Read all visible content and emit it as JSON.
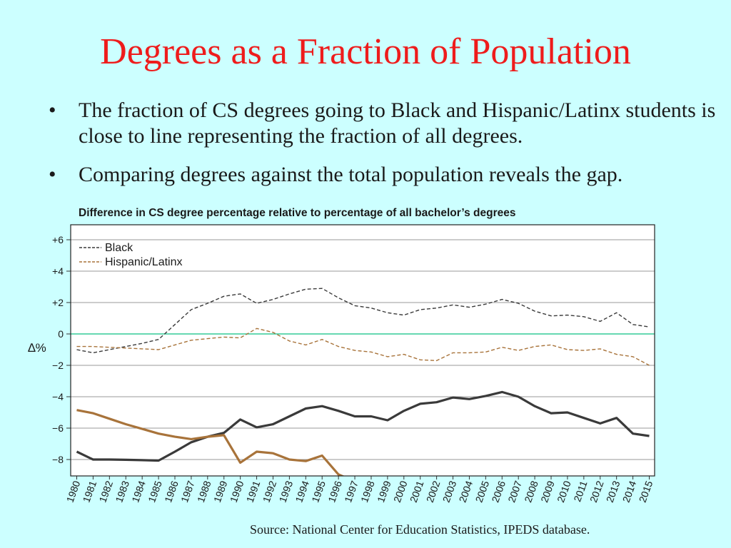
{
  "slide": {
    "title": "Degrees as a Fraction of Population",
    "bullets": [
      "The fraction of CS degrees going to Black and Hispanic/Latinx students is close to line representing the fraction of all degrees.",
      "Comparing degrees against the total population reveals the gap."
    ],
    "source": "Source:  National Center for Education Statistics, IPEDS database."
  },
  "colors": {
    "background": "#ccffff",
    "title": "#ee1c1c",
    "black_series": "#3a3a3a",
    "hispanic_series": "#a8733a",
    "zero_line": "#33cc99",
    "grid": "#9a9a9a"
  },
  "chart_data": {
    "type": "line",
    "title": "Difference in CS degree percentage relative to percentage of all bachelor’s degrees",
    "ylabel": "∆%",
    "xlabel": "",
    "ylim": [
      -9,
      6.5
    ],
    "yticks": [
      6,
      4,
      2,
      0,
      -2,
      -4,
      -6,
      -8
    ],
    "ytick_labels": [
      "+6",
      "+4",
      "+2",
      "0",
      "−2",
      "−4",
      "−6",
      "−8"
    ],
    "grid": true,
    "legend": {
      "placement": "top-left",
      "entries": [
        "Black",
        "Hispanic/Latinx"
      ]
    },
    "x": [
      1980,
      1981,
      1982,
      1983,
      1984,
      1985,
      1986,
      1987,
      1988,
      1989,
      1990,
      1991,
      1992,
      1993,
      1994,
      1995,
      1996,
      1997,
      1998,
      1999,
      2000,
      2001,
      2002,
      2003,
      2004,
      2005,
      2006,
      2007,
      2008,
      2009,
      2010,
      2011,
      2012,
      2013,
      2014,
      2015
    ],
    "series": [
      {
        "name": "Black",
        "style": "dashed",
        "values": [
          -1.0,
          -1.2,
          -1.0,
          -0.8,
          -0.6,
          -0.35,
          0.6,
          1.55,
          1.95,
          2.4,
          2.55,
          1.95,
          2.2,
          2.55,
          2.85,
          2.9,
          2.3,
          1.8,
          1.65,
          1.35,
          1.2,
          1.55,
          1.65,
          1.85,
          1.7,
          1.9,
          2.2,
          1.95,
          1.45,
          1.15,
          1.2,
          1.1,
          0.8,
          1.35,
          0.6,
          0.45
        ]
      },
      {
        "name": "Hispanic/Latinx",
        "style": "dashed",
        "values": [
          -0.8,
          -0.8,
          -0.85,
          -0.9,
          -0.95,
          -1.0,
          -0.7,
          -0.4,
          -0.3,
          -0.2,
          -0.25,
          0.35,
          0.1,
          -0.45,
          -0.7,
          -0.35,
          -0.8,
          -1.05,
          -1.15,
          -1.45,
          -1.3,
          -1.65,
          -1.7,
          -1.2,
          -1.2,
          -1.15,
          -0.85,
          -1.05,
          -0.8,
          -0.7,
          -1.0,
          -1.05,
          -0.95,
          -1.3,
          -1.45,
          -2.0
        ]
      },
      {
        "name": "",
        "style": "solid",
        "values": [
          -7.5,
          -8.0,
          -8.0,
          -8.02,
          -8.04,
          -8.07,
          -7.5,
          -6.9,
          -6.55,
          -6.3,
          -5.45,
          -5.95,
          -5.75,
          -5.25,
          -4.75,
          -4.6,
          -4.9,
          -5.25,
          -5.25,
          -5.5,
          -4.9,
          -4.45,
          -4.35,
          -4.05,
          -4.15,
          -3.95,
          -3.7,
          -4.0,
          -4.6,
          -5.05,
          -5.0,
          -5.35,
          -5.7,
          -5.35,
          -6.35,
          -6.5
        ]
      },
      {
        "name": "",
        "style": "solid",
        "values": [
          -4.85,
          -5.05,
          -5.4,
          -5.75,
          -6.05,
          -6.35,
          -6.55,
          -6.7,
          -6.55,
          -6.45,
          -8.2,
          -7.5,
          -7.6,
          -8.0,
          -8.1,
          -7.75,
          -8.95,
          -9.4,
          null,
          null,
          null,
          null,
          null,
          null,
          null,
          null,
          null,
          null,
          null,
          null,
          null,
          null,
          null,
          null,
          null,
          null
        ]
      }
    ]
  }
}
